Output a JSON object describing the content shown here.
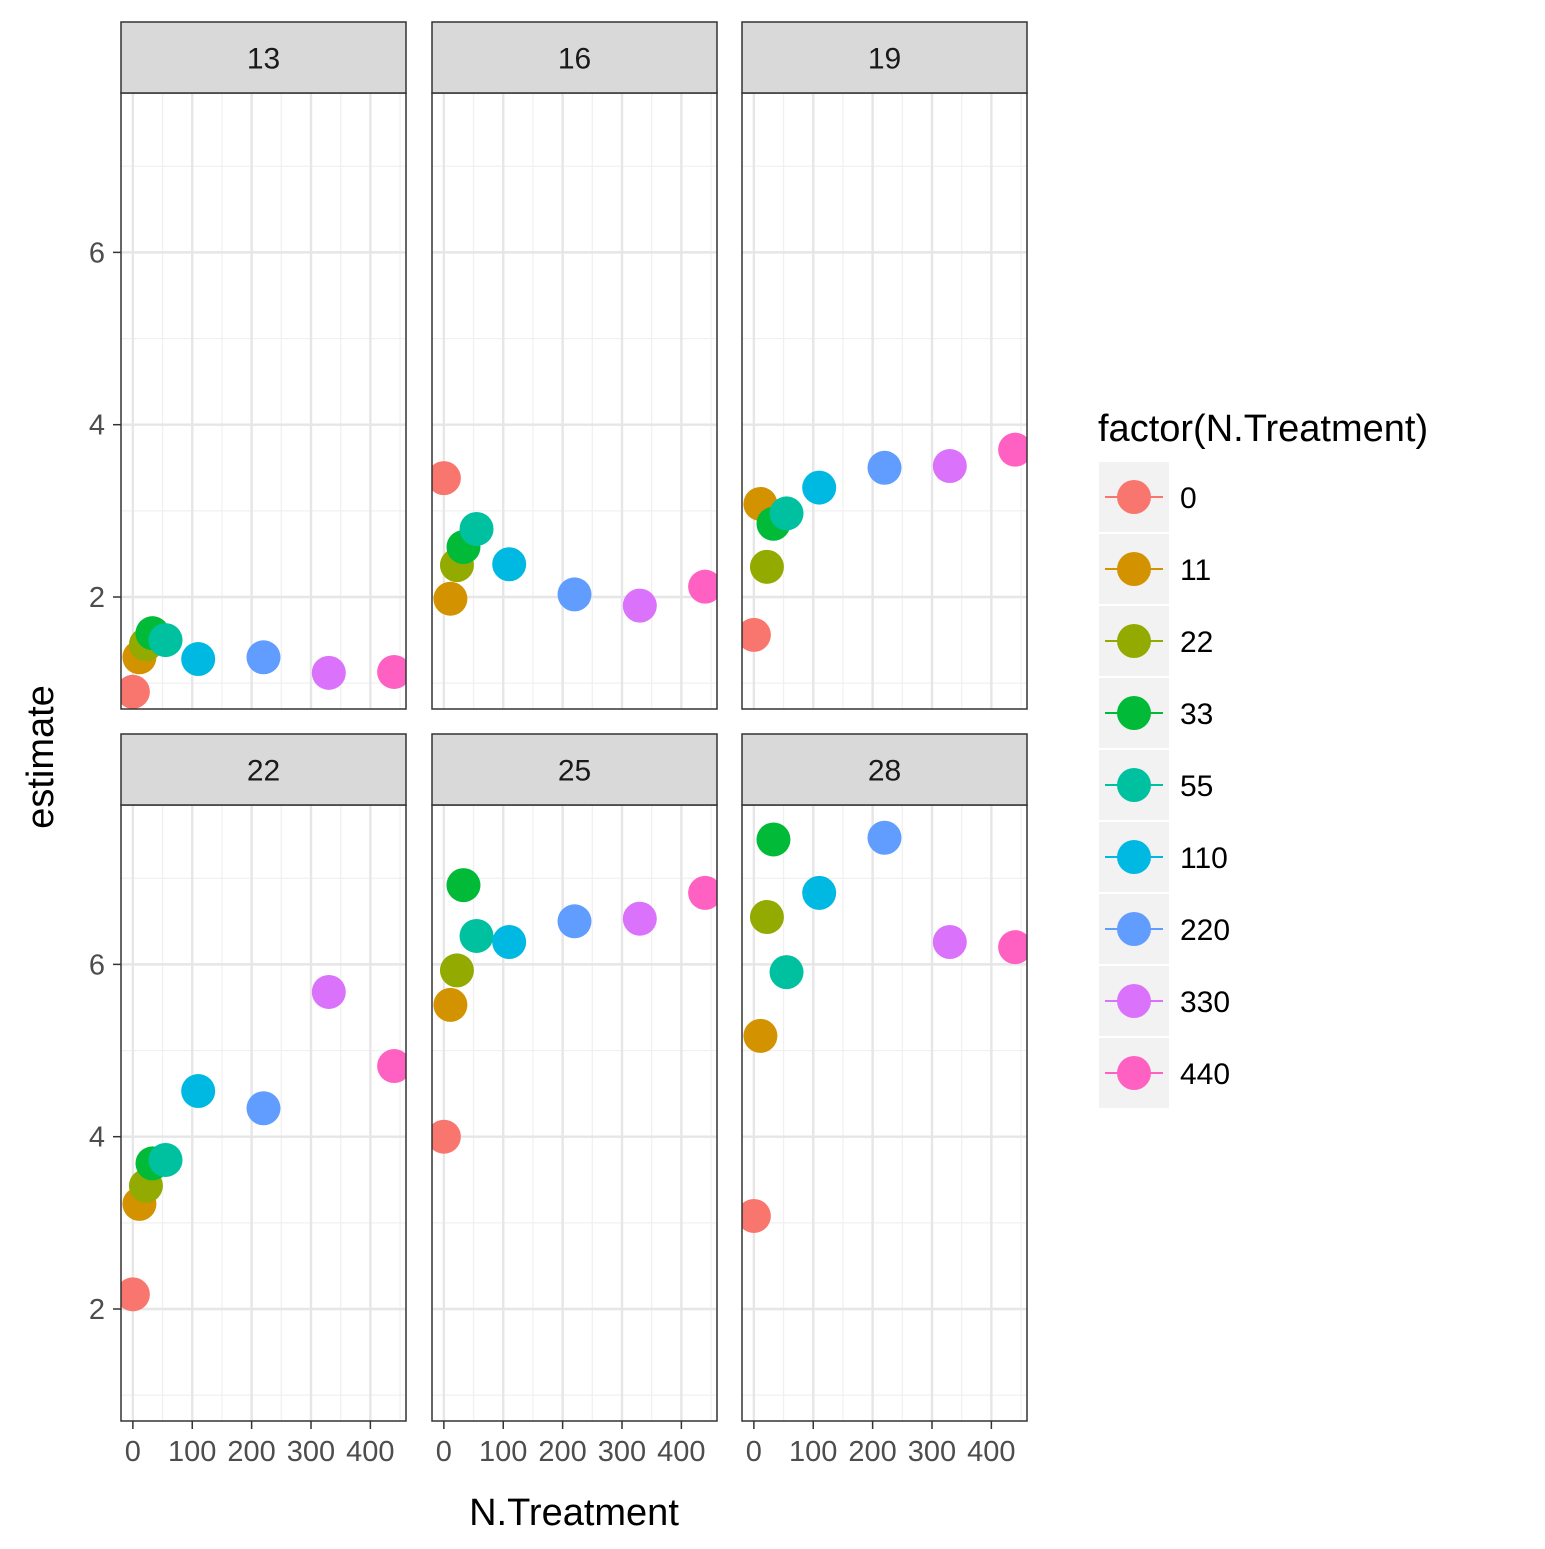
{
  "chart_data": {
    "type": "scatter",
    "xlabel": "N.Treatment",
    "ylabel": "estimate",
    "xlim": [
      -20,
      460
    ],
    "ylim": [
      0.7,
      7.85
    ],
    "x_ticks": [
      0,
      100,
      200,
      300,
      400
    ],
    "y_ticks": [
      2,
      4,
      6
    ],
    "grid": true,
    "legend": {
      "title": "factor(N.Treatment)",
      "position": "right",
      "entries": [
        "0",
        "11",
        "22",
        "33",
        "55",
        "110",
        "220",
        "330",
        "440"
      ]
    },
    "x": [
      0,
      11,
      22,
      33,
      55,
      110,
      220,
      330,
      440
    ],
    "colors": [
      "#F8766D",
      "#D39200",
      "#93AA00",
      "#00BA38",
      "#00C19F",
      "#00B9E3",
      "#619CFF",
      "#DB72FB",
      "#FF61C3"
    ],
    "panels": [
      {
        "label": "13",
        "values": [
          0.9,
          1.3,
          1.45,
          1.58,
          1.5,
          1.28,
          1.3,
          1.12,
          1.13
        ]
      },
      {
        "label": "16",
        "values": [
          3.38,
          1.98,
          2.37,
          2.58,
          2.79,
          2.38,
          2.03,
          1.9,
          2.12
        ]
      },
      {
        "label": "19",
        "values": [
          1.56,
          3.08,
          2.35,
          2.85,
          2.97,
          3.27,
          3.5,
          3.52,
          3.71
        ]
      },
      {
        "label": "22",
        "values": [
          2.17,
          3.22,
          3.43,
          3.69,
          3.73,
          4.53,
          4.33,
          5.68,
          4.82
        ]
      },
      {
        "label": "25",
        "values": [
          4.0,
          5.53,
          5.93,
          6.92,
          6.33,
          6.26,
          6.5,
          6.53,
          6.83
        ]
      },
      {
        "label": "28",
        "values": [
          3.08,
          5.17,
          6.55,
          7.45,
          5.91,
          6.83,
          7.47,
          6.26,
          6.2
        ]
      }
    ]
  }
}
